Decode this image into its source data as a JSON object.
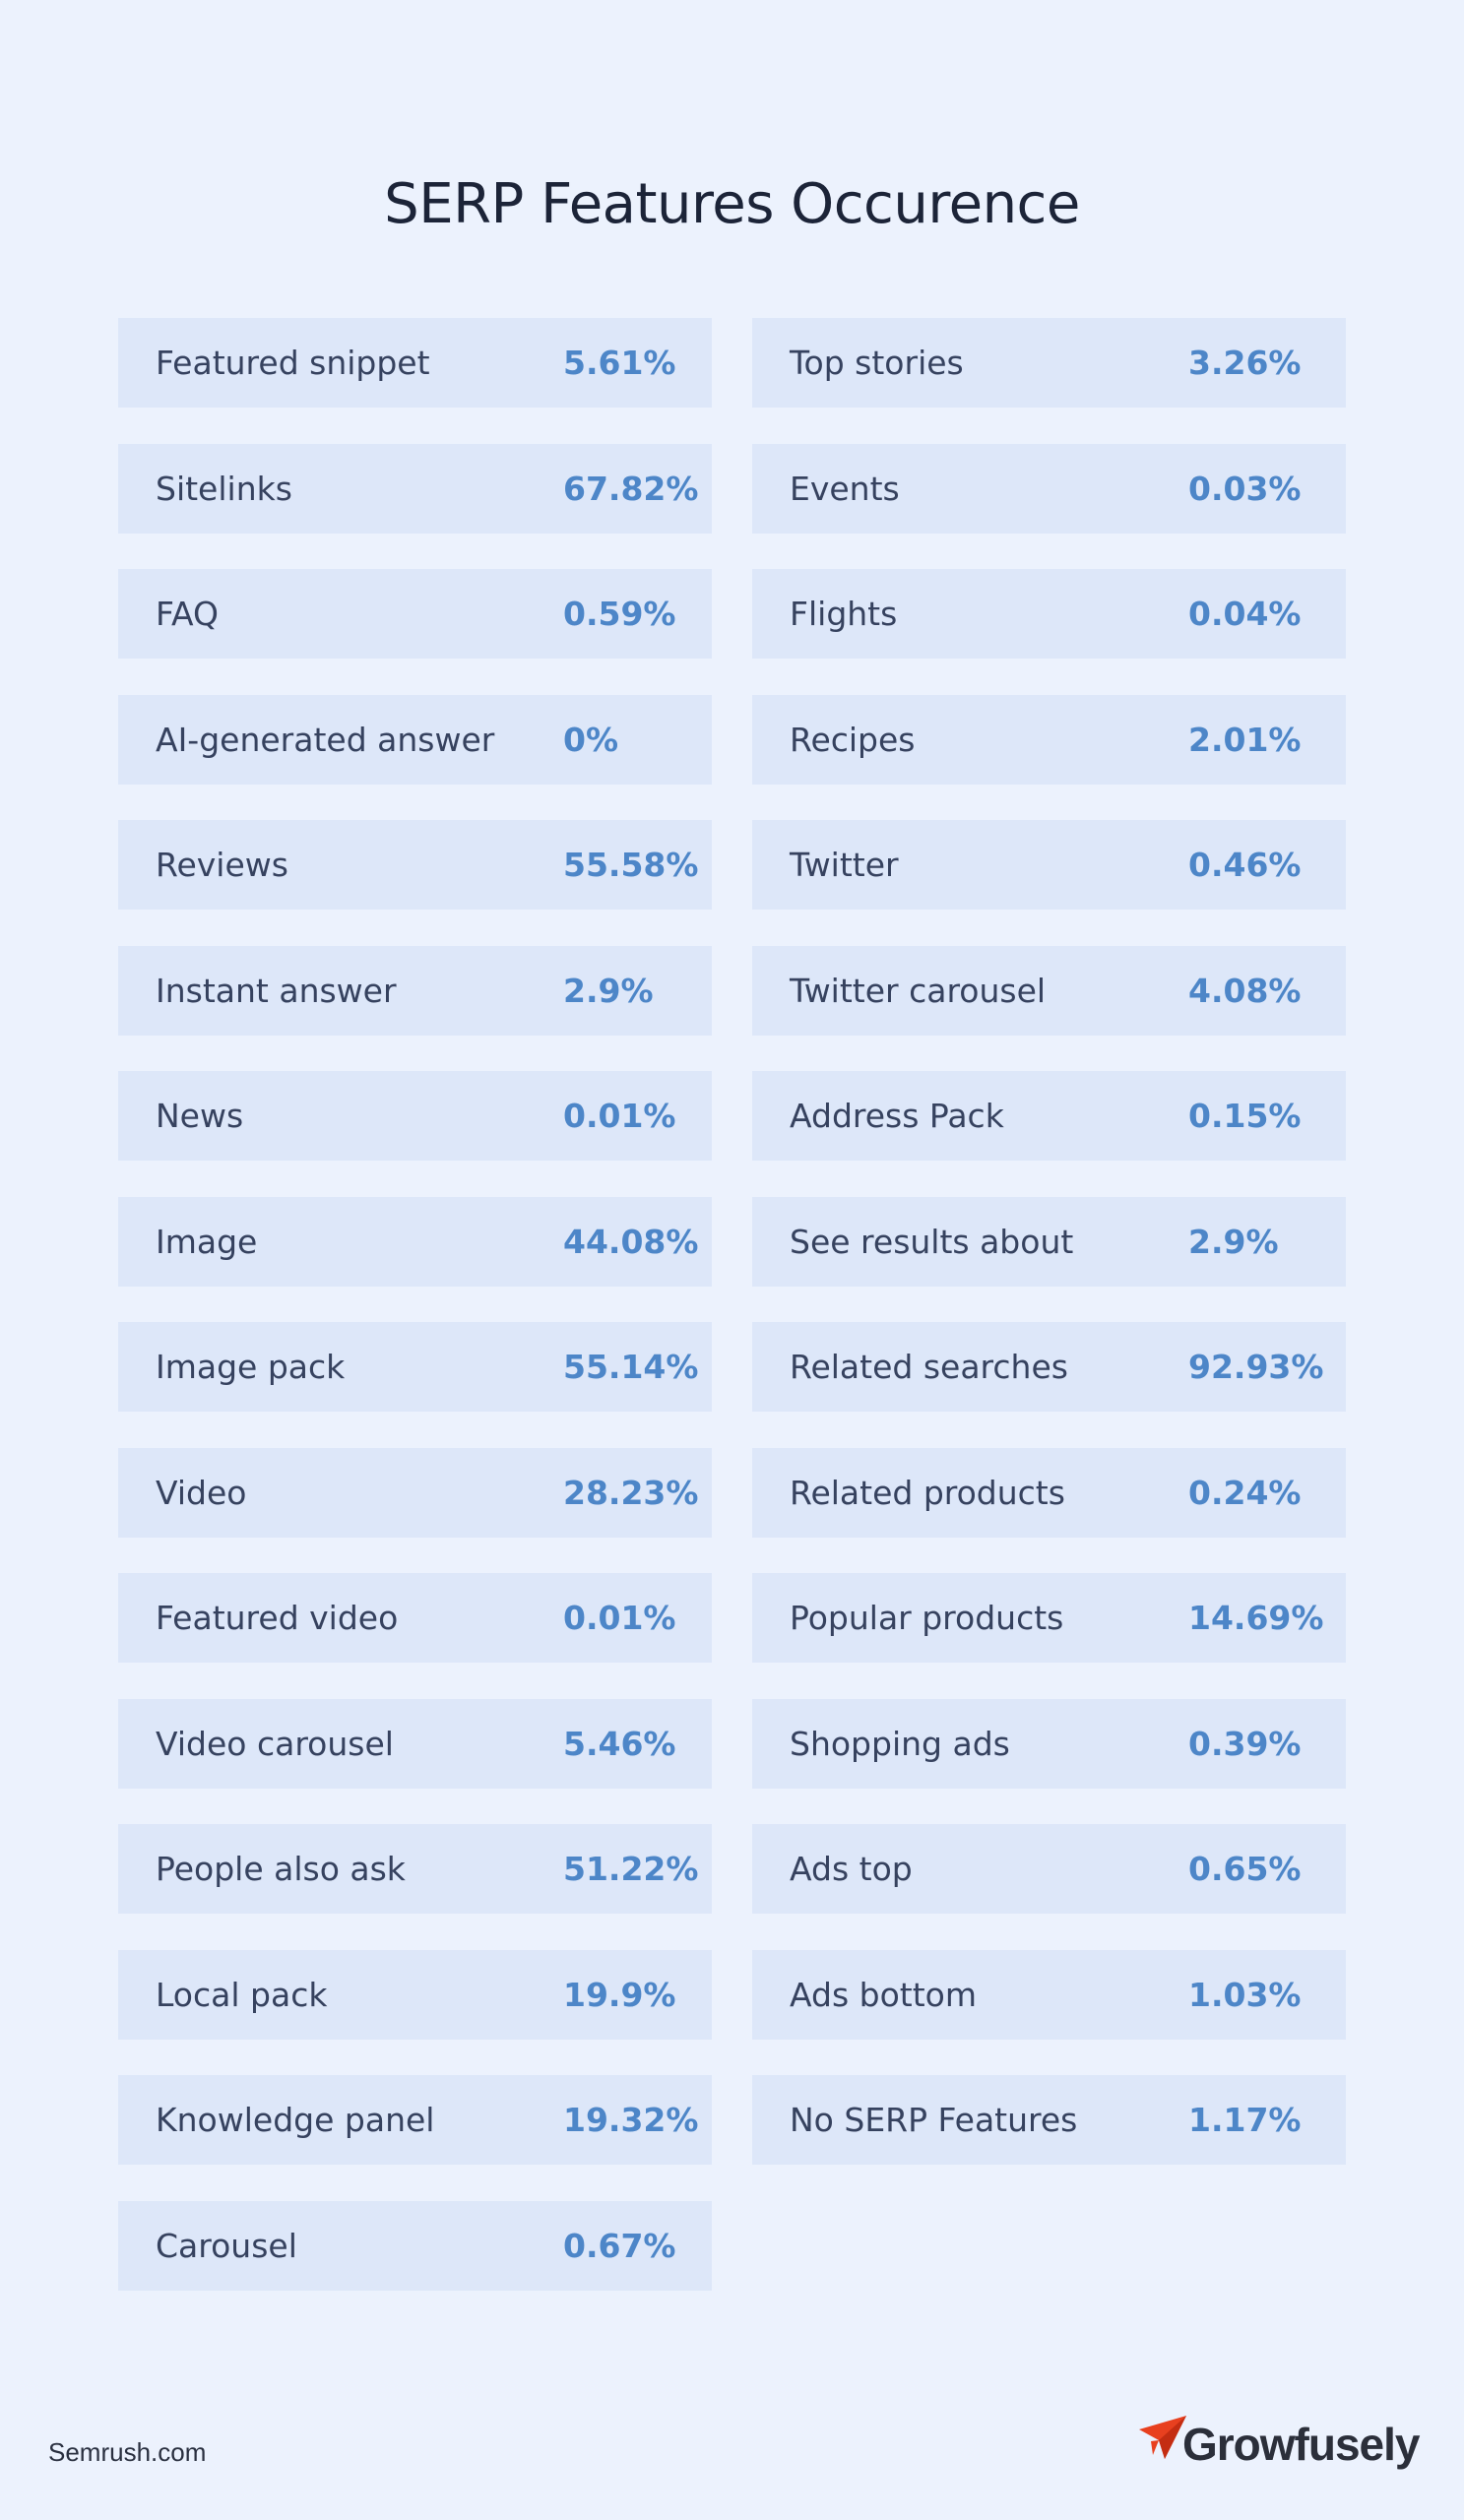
{
  "title": "SERP Features Occurence",
  "left_column": [
    {
      "label": "Featured snippet",
      "value": "5.61%"
    },
    {
      "label": "Sitelinks",
      "value": "67.82%"
    },
    {
      "label": "FAQ",
      "value": "0.59%"
    },
    {
      "label": "AI-generated answer",
      "value": "0%"
    },
    {
      "label": "Reviews",
      "value": "55.58%"
    },
    {
      "label": "Instant answer",
      "value": "2.9%"
    },
    {
      "label": "News",
      "value": "0.01%"
    },
    {
      "label": "Image",
      "value": "44.08%"
    },
    {
      "label": "Image pack",
      "value": "55.14%"
    },
    {
      "label": "Video",
      "value": "28.23%"
    },
    {
      "label": "Featured video",
      "value": "0.01%"
    },
    {
      "label": "Video carousel",
      "value": "5.46%"
    },
    {
      "label": "People also ask",
      "value": "51.22%"
    },
    {
      "label": "Local pack",
      "value": "19.9%"
    },
    {
      "label": "Knowledge panel",
      "value": "19.32%"
    },
    {
      "label": "Carousel",
      "value": "0.67%"
    }
  ],
  "right_column": [
    {
      "label": "Top stories",
      "value": "3.26%"
    },
    {
      "label": "Events",
      "value": "0.03%"
    },
    {
      "label": "Flights",
      "value": "0.04%"
    },
    {
      "label": "Recipes",
      "value": "2.01%"
    },
    {
      "label": "Twitter",
      "value": "0.46%"
    },
    {
      "label": "Twitter carousel",
      "value": "4.08%"
    },
    {
      "label": "Address Pack",
      "value": "0.15%"
    },
    {
      "label": "See results about",
      "value": "2.9%"
    },
    {
      "label": "Related searches",
      "value": "92.93%"
    },
    {
      "label": "Related products",
      "value": "0.24%"
    },
    {
      "label": "Popular products",
      "value": "14.69%"
    },
    {
      "label": "Shopping ads",
      "value": "0.39%"
    },
    {
      "label": "Ads top",
      "value": "0.65%"
    },
    {
      "label": "Ads bottom",
      "value": "1.03%"
    },
    {
      "label": "No SERP Features",
      "value": "1.17%"
    }
  ],
  "footer": {
    "source": "Semrush.com",
    "brand_name": "Growfusely",
    "brand_icon": "paper-plane-icon",
    "brand_color": "#e8401f"
  },
  "colors": {
    "background": "#ecf2fd",
    "row_background": "#dde7f9",
    "label_text": "#36425f",
    "value_text": "#4d86c8",
    "title_text": "#1c2438"
  }
}
